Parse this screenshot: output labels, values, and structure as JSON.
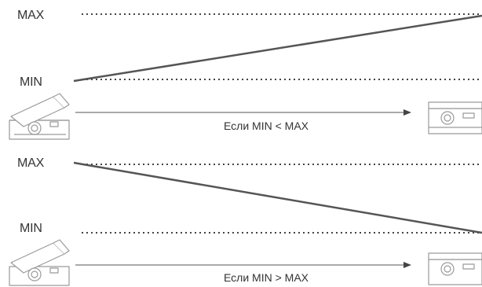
{
  "panels": [
    {
      "max_label": "MAX",
      "min_label": "MIN",
      "condition": "Если MIN < MAX"
    },
    {
      "max_label": "MAX",
      "min_label": "MIN",
      "condition": "Если MIN > MAX"
    }
  ],
  "colors": {
    "line": "#555555",
    "dots": "#444444",
    "pedal_stroke": "#9a9a9a",
    "text": "#333333"
  },
  "icons": {
    "pedal_up": "expression-pedal-heel-down-icon",
    "pedal_down": "expression-pedal-toe-down-icon"
  }
}
